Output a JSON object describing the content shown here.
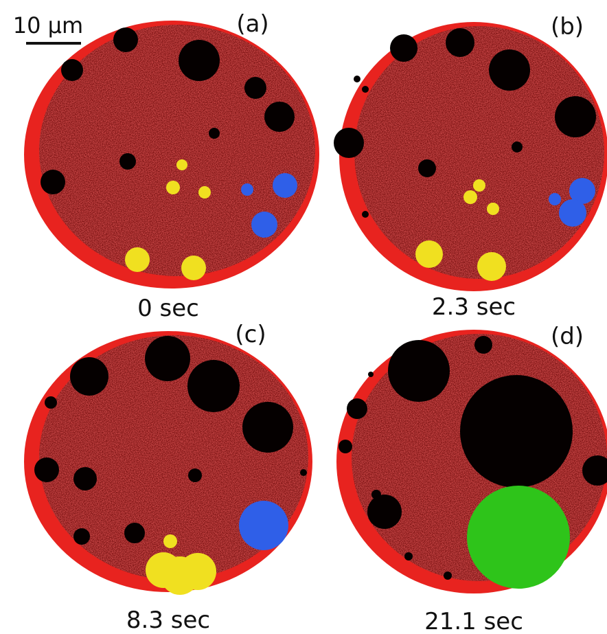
{
  "scale_bar": {
    "label": "10 µm"
  },
  "panels": [
    {
      "label": "(a)",
      "time": "0 sec"
    },
    {
      "label": "(b)",
      "time": "2.3 sec"
    },
    {
      "label": "(c)",
      "time": "8.3 sec"
    },
    {
      "label": "(d)",
      "time": "21.1 sec"
    }
  ]
}
